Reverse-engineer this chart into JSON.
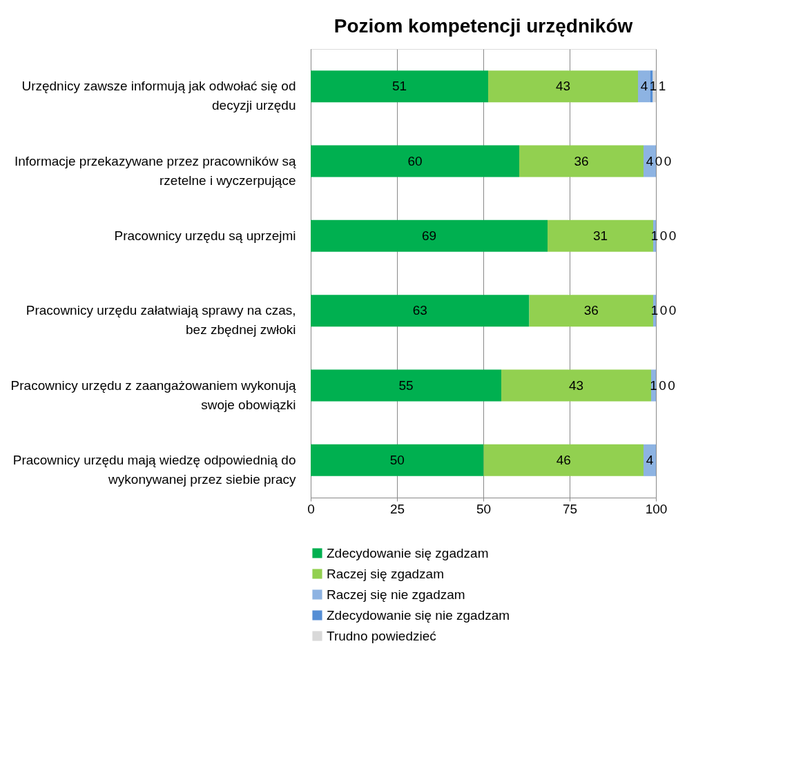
{
  "chart_data": {
    "type": "bar",
    "orientation": "horizontal",
    "stacked": true,
    "title": "Poziom kompetencji urzędników",
    "categories": [
      "Urzędnicy zawsze informują jak odwołać się od decyzji urzędu",
      "Informacje przekazywane przez pracowników są rzetelne i wyczerpujące",
      "Pracownicy urzędu są uprzejmi",
      "Pracownicy urzędu załatwiają sprawy na czas, bez zbędnej zwłoki",
      "Pracownicy urzędu z zaangażowaniem wykonują swoje obowiązki",
      "Pracownicy urzędu mają wiedzę odpowiednią do wykonywanej przez siebie pracy"
    ],
    "series": [
      {
        "name": "Zdecydowanie się zgadzam",
        "color": "#00b050",
        "values": [
          51.4,
          60.4,
          68.6,
          63.3,
          55.2,
          50.1
        ],
        "value_labels": [
          "51",
          "60",
          "69",
          "63",
          "55",
          "50"
        ]
      },
      {
        "name": "Raczej się zgadzam",
        "color": "#92d050",
        "values": [
          43.4,
          36.0,
          30.6,
          35.9,
          43.4,
          46.3
        ],
        "value_labels": [
          "43",
          "36",
          "31",
          "36",
          "43",
          "46"
        ]
      },
      {
        "name": "Raczej się nie zgadzam",
        "color": "#8db3e2",
        "values": [
          3.6,
          3.6,
          0.8,
          0.8,
          1.4,
          3.6
        ],
        "value_labels": [
          "4",
          "4",
          "1",
          "1",
          "1",
          "4"
        ]
      },
      {
        "name": "Zdecydowanie się nie zgadzam",
        "color": "#558ed5",
        "values": [
          0.7,
          0,
          0,
          0,
          0,
          0
        ],
        "value_labels": [
          "1",
          "0",
          "0",
          "0",
          "0",
          null
        ]
      },
      {
        "name": "Trudno powiedzieć",
        "color": "#d9d9d9",
        "values": [
          0.9,
          0,
          0,
          0,
          0,
          0
        ],
        "value_labels": [
          "1",
          "0",
          "0",
          "0",
          "0",
          null
        ]
      }
    ],
    "xlim": [
      0,
      100
    ],
    "xticks": [
      0,
      25,
      50,
      75,
      100
    ],
    "grid": "x",
    "legend": "bottom"
  }
}
